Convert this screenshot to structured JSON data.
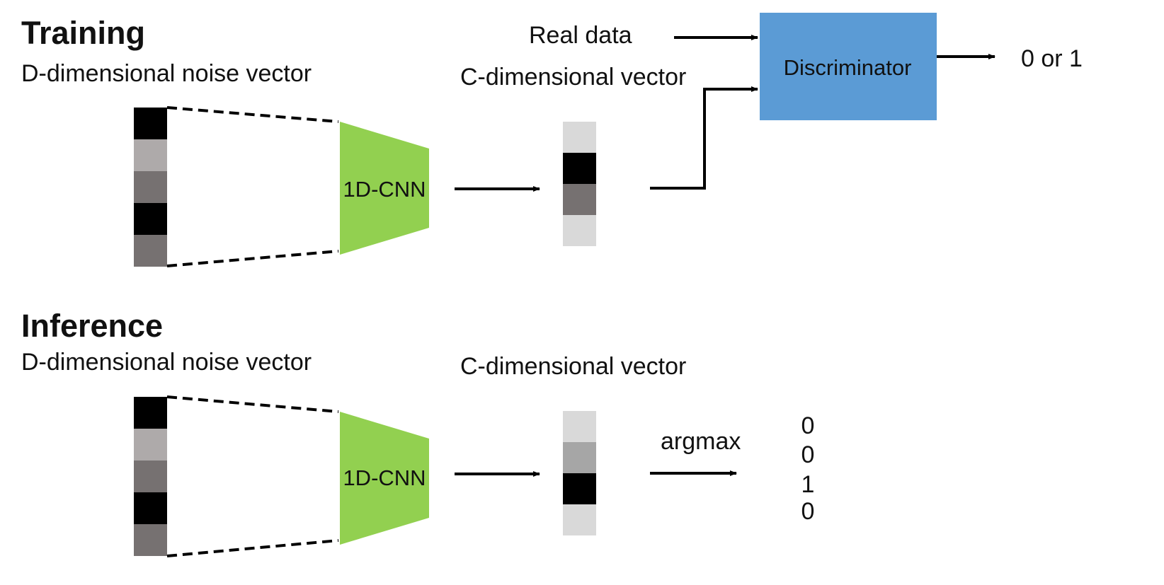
{
  "colors": {
    "cnn_fill": "#92d050",
    "discriminator_fill": "#5b9bd5",
    "cell_black": "#000000",
    "cell_dark_gray": "#767171",
    "cell_mid_gray": "#a6a6a6",
    "cell_light_gray": "#aeaaaa",
    "cell_very_light_gray": "#d9d9d9",
    "arrow": "#000000"
  },
  "training": {
    "title": "Training",
    "noise_label": "D-dimensional noise vector",
    "noise_cells": [
      "black",
      "light-gray",
      "dark-gray",
      "black",
      "dark-gray"
    ],
    "cnn_label": "1D-CNN",
    "output_label": "C-dimensional vector",
    "output_cells": [
      "very-light-gray",
      "black",
      "dark-gray",
      "very-light-gray"
    ],
    "real_data_label": "Real data",
    "discriminator_label": "Discriminator",
    "discriminator_output": "0 or 1"
  },
  "inference": {
    "title": "Inference",
    "noise_label": "D-dimensional noise vector",
    "noise_cells": [
      "black",
      "light-gray",
      "dark-gray",
      "black",
      "dark-gray"
    ],
    "cnn_label": "1D-CNN",
    "output_label": "C-dimensional vector",
    "output_cells": [
      "very-light-gray",
      "mid-gray",
      "black",
      "very-light-gray"
    ],
    "argmax_label": "argmax",
    "one_hot": [
      "0",
      "0",
      "1",
      "0"
    ]
  }
}
